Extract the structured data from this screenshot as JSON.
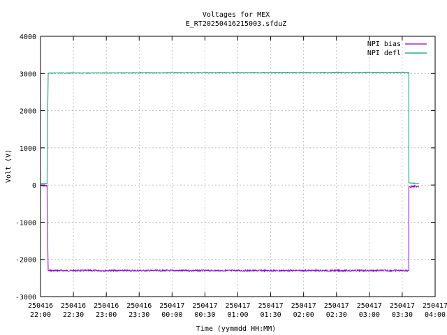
{
  "chart_data": {
    "type": "line",
    "title": "Voltages for MEX",
    "subtitle": "E_RT20250416215003.sfduZ",
    "xlabel": "Time (yymmdd HH:MM)",
    "ylabel": "Volt (V)",
    "ylim": [
      -3000,
      4000
    ],
    "xlim_minutes": [
      0,
      360
    ],
    "grid": true,
    "legend_position": "top-right",
    "y_ticks": [
      -3000,
      -2000,
      -1000,
      0,
      1000,
      2000,
      3000,
      4000
    ],
    "y_tick_labels": [
      "-3000",
      "-2000",
      "-1000",
      "0",
      "1000",
      "2000",
      "3000",
      "4000"
    ],
    "x_ticks": [
      {
        "date": "250416",
        "time": "22:00"
      },
      {
        "date": "250416",
        "time": "22:30"
      },
      {
        "date": "250416",
        "time": "23:00"
      },
      {
        "date": "250416",
        "time": "23:30"
      },
      {
        "date": "250417",
        "time": "00:00"
      },
      {
        "date": "250417",
        "time": "00:30"
      },
      {
        "date": "250417",
        "time": "01:00"
      },
      {
        "date": "250417",
        "time": "01:30"
      },
      {
        "date": "250417",
        "time": "02:00"
      },
      {
        "date": "250417",
        "time": "02:30"
      },
      {
        "date": "250417",
        "time": "03:00"
      },
      {
        "date": "250417",
        "time": "03:30"
      },
      {
        "date": "250417",
        "time": "04:00"
      }
    ],
    "series": [
      {
        "name": "NPI bias",
        "color": "#9400d3",
        "x": [
          "250416 22:00",
          "250416 22:06",
          "250416 22:06",
          "250416 22:07",
          "250416 22:07",
          "250417 03:35",
          "250417 03:36",
          "250417 03:36",
          "250417 03:45"
        ],
        "y": [
          -20,
          -20,
          -300,
          -2300,
          -2300,
          -2300,
          -2300,
          -50,
          -30
        ]
      },
      {
        "name": "NPI defl",
        "color": "#009e73",
        "x": [
          "250416 22:00",
          "250416 22:06",
          "250416 22:06",
          "250416 22:07",
          "250416 22:07",
          "250417 00:00",
          "250417 03:35",
          "250417 03:36",
          "250417 03:36",
          "250417 03:45"
        ],
        "y": [
          40,
          40,
          300,
          3000,
          3010,
          3020,
          3030,
          3030,
          60,
          40
        ]
      }
    ]
  }
}
